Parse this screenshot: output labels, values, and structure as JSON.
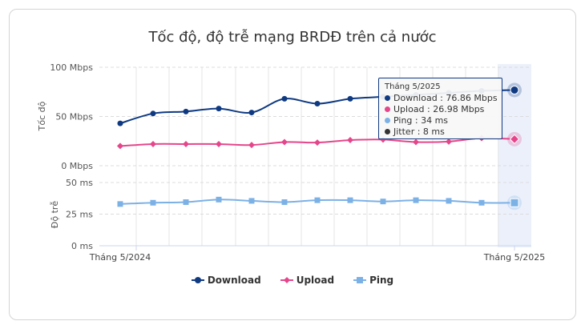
{
  "title": "Tốc độ, độ trễ mạng BRDĐ trên cả nước",
  "chart_data": {
    "type": "line",
    "x_first_label": "Tháng 5/2024",
    "x_last_label": "Tháng 5/2025",
    "points": 13,
    "panels": [
      {
        "ylabel": "Tốc độ",
        "yticks": [
          "100 Mbps",
          "50 Mbps",
          "0 Mbps"
        ],
        "ylim": [
          0,
          100
        ],
        "series": [
          {
            "name": "Download",
            "color": "#0f3a82",
            "marker": "circle",
            "values": [
              43,
              53,
              55,
              58,
              54,
              68,
              63,
              68,
              70,
              72,
              74,
              76,
              76.86
            ]
          },
          {
            "name": "Upload",
            "color": "#e5468b",
            "marker": "diamond",
            "values": [
              20,
              22,
              22,
              22,
              21,
              24,
              23.5,
              26,
              26.5,
              24,
              24.5,
              28,
              26.98
            ]
          }
        ]
      },
      {
        "ylabel": "Độ trễ",
        "yticks": [
          "50 ms",
          "25 ms",
          "0 ms"
        ],
        "ylim": [
          0,
          50
        ],
        "series": [
          {
            "name": "Ping",
            "color": "#7cb1e6",
            "marker": "square",
            "values": [
              33,
              34,
              34.5,
              36.5,
              35.5,
              34.5,
              36,
              36,
              35,
              36,
              35.5,
              34,
              34
            ]
          }
        ]
      }
    ],
    "tooltip": {
      "header": "Tháng 5/2025",
      "rows": [
        {
          "text": "Download : 76.86 Mbps",
          "color": "#0f3a82"
        },
        {
          "text": "Upload : 26.98 Mbps",
          "color": "#e5468b"
        },
        {
          "text": "Ping : 34 ms",
          "color": "#7cb1e6"
        },
        {
          "text": "Jitter : 8 ms",
          "color": "#333333"
        }
      ]
    },
    "legend": [
      {
        "name": "Download",
        "color": "#0f3a82",
        "marker": "circle"
      },
      {
        "name": "Upload",
        "color": "#e5468b",
        "marker": "diamond"
      },
      {
        "name": "Ping",
        "color": "#7cb1e6",
        "marker": "square"
      }
    ]
  }
}
